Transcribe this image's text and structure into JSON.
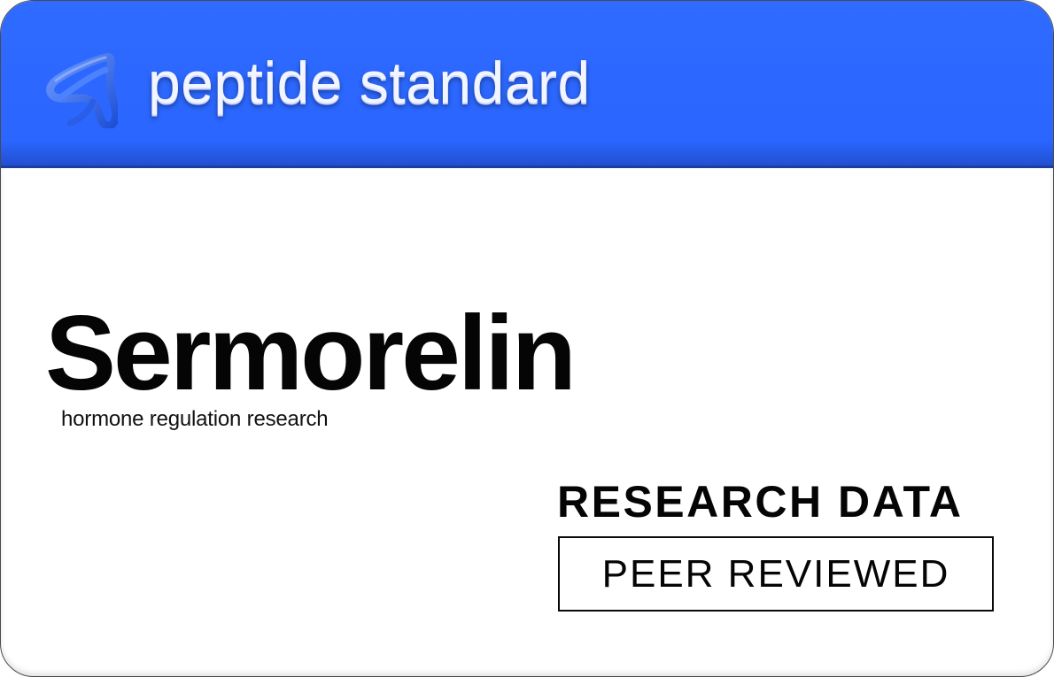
{
  "brand": {
    "name": "peptide standard",
    "logo_icon": "triangular-knot-icon",
    "header_color": "#2a66ff"
  },
  "product": {
    "name": "Sermorelin",
    "subtitle": "hormone regulation research"
  },
  "badges": {
    "heading": "RESEARCH DATA",
    "boxed_label": "PEER REVIEWED"
  }
}
